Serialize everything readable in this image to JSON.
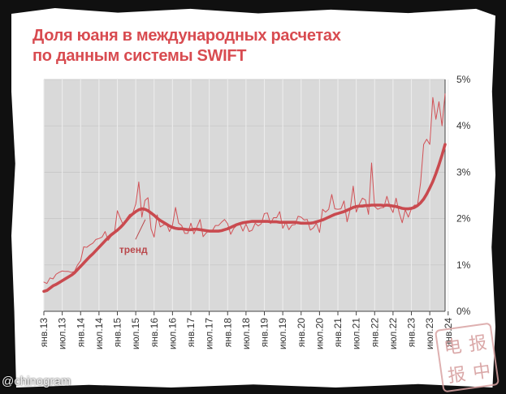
{
  "title": {
    "line1": "Доля юаня в международных расчетах",
    "line2": "по данным системы SWIFT"
  },
  "watermark": "@chinogram",
  "stamp_text": [
    "电",
    "报",
    "报",
    "中"
  ],
  "colors": {
    "title": "#d84b50",
    "trend": "#c94a4f",
    "raw": "#d14a4f",
    "plot_bg": "#d9d9d9",
    "axis": "#444444"
  },
  "chart_data": {
    "type": "line",
    "title": "Доля юаня в международных расчетах по данным системы SWIFT",
    "xlabel": "",
    "ylabel": "",
    "x_start": "янв.13",
    "x_step": "month",
    "ylim": [
      0,
      5
    ],
    "yticks": [
      "0%",
      "1%",
      "2%",
      "3%",
      "4%",
      "5%"
    ],
    "xticks": [
      "янв.13",
      "июл.13",
      "янв.14",
      "июл.14",
      "янв.15",
      "июл.15",
      "янв.16",
      "июл.16",
      "янв.17",
      "июл.17",
      "янв.18",
      "июл.18",
      "янв.19",
      "июл.19",
      "янв.20",
      "июл.20",
      "янв.21",
      "июл.21",
      "янв.22",
      "июл.22",
      "янв.23",
      "июл.23",
      "янв.24"
    ],
    "grid": true,
    "annotation": "тренд",
    "series": [
      {
        "name": "",
        "style": "thin",
        "values": [
          0.63,
          0.6,
          0.72,
          0.7,
          0.8,
          0.84,
          0.87,
          0.86,
          0.86,
          0.84,
          0.86,
          1.0,
          1.09,
          1.39,
          1.38,
          1.43,
          1.47,
          1.55,
          1.57,
          1.6,
          1.72,
          1.53,
          1.62,
          1.67,
          2.17,
          2.0,
          1.85,
          2.0,
          2.09,
          2.11,
          2.31,
          2.79,
          2.03,
          2.39,
          2.45,
          1.78,
          1.6,
          2.08,
          1.82,
          1.86,
          1.9,
          1.72,
          1.86,
          2.24,
          1.9,
          1.85,
          1.68,
          1.68,
          1.9,
          1.67,
          1.82,
          1.98,
          1.61,
          1.69,
          1.74,
          1.74,
          1.85,
          1.85,
          1.92,
          1.98,
          1.89,
          1.66,
          1.79,
          1.85,
          1.89,
          1.73,
          1.88,
          1.72,
          1.75,
          1.9,
          1.84,
          1.89,
          2.11,
          2.12,
          1.89,
          2.02,
          2.02,
          2.15,
          1.79,
          1.92,
          1.76,
          1.86,
          1.87,
          2.05,
          2.03,
          1.97,
          1.98,
          1.75,
          1.8,
          1.9,
          1.7,
          2.2,
          2.14,
          2.2,
          2.52,
          2.21,
          2.2,
          2.21,
          2.38,
          1.93,
          2.19,
          2.7,
          2.14,
          2.31,
          2.44,
          2.4,
          2.09,
          3.2,
          2.26,
          2.2,
          2.23,
          2.24,
          2.48,
          2.26,
          2.13,
          2.44,
          2.13,
          1.91,
          2.19,
          2.03,
          2.21,
          2.29,
          2.29,
          2.77,
          3.6,
          3.71,
          3.6,
          4.61,
          4.14,
          4.52,
          4.0,
          4.69
        ]
      },
      {
        "name": "тренд",
        "style": "thick",
        "values": [
          0.43,
          0.45,
          0.5,
          0.55,
          0.58,
          0.62,
          0.66,
          0.7,
          0.74,
          0.78,
          0.83,
          0.9,
          0.97,
          1.04,
          1.11,
          1.18,
          1.24,
          1.31,
          1.38,
          1.45,
          1.52,
          1.59,
          1.65,
          1.7,
          1.75,
          1.81,
          1.88,
          1.96,
          2.04,
          2.1,
          2.15,
          2.19,
          2.21,
          2.2,
          2.17,
          2.12,
          2.07,
          2.01,
          1.96,
          1.92,
          1.88,
          1.84,
          1.81,
          1.79,
          1.78,
          1.78,
          1.77,
          1.76,
          1.76,
          1.77,
          1.77,
          1.76,
          1.75,
          1.74,
          1.73,
          1.73,
          1.73,
          1.73,
          1.74,
          1.76,
          1.78,
          1.81,
          1.84,
          1.87,
          1.89,
          1.91,
          1.92,
          1.93,
          1.94,
          1.94,
          1.94,
          1.94,
          1.94,
          1.94,
          1.93,
          1.93,
          1.93,
          1.92,
          1.92,
          1.92,
          1.92,
          1.92,
          1.92,
          1.91,
          1.9,
          1.9,
          1.9,
          1.9,
          1.91,
          1.93,
          1.95,
          1.97,
          2.0,
          2.03,
          2.06,
          2.09,
          2.11,
          2.13,
          2.15,
          2.18,
          2.21,
          2.24,
          2.26,
          2.27,
          2.27,
          2.28,
          2.28,
          2.29,
          2.29,
          2.29,
          2.29,
          2.28,
          2.29,
          2.28,
          2.27,
          2.26,
          2.24,
          2.22,
          2.21,
          2.21,
          2.22,
          2.24,
          2.28,
          2.34,
          2.42,
          2.53,
          2.66,
          2.8,
          2.97,
          3.16,
          3.37,
          3.6
        ]
      }
    ]
  }
}
